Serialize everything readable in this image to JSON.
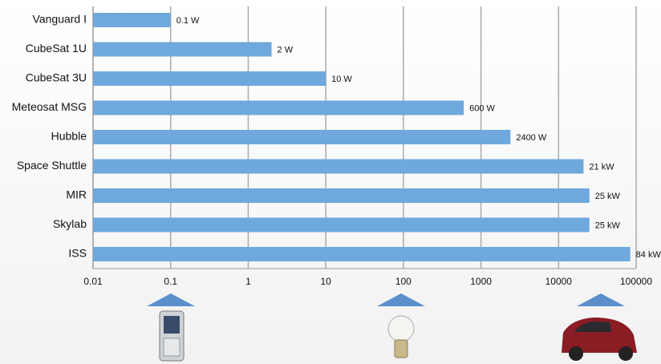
{
  "chart_data": {
    "type": "bar",
    "orientation": "horizontal",
    "categories": [
      "Vanguard I",
      "CubeSat 1U",
      "CubeSat 3U",
      "Meteosat MSG",
      "Hubble",
      "Space Shuttle",
      "MIR",
      "Skylab",
      "ISS"
    ],
    "values": [
      0.1,
      2,
      10,
      600,
      2400,
      21000,
      25000,
      25000,
      84000
    ],
    "value_labels": [
      "0.1 W",
      "2 W",
      "10 W",
      "600 W",
      "2400 W",
      "21 kW",
      "25 kW",
      "25 kW",
      "84 kW"
    ],
    "color": "#6fa8dc",
    "xscale": "log",
    "xlim": [
      0.01,
      100000
    ],
    "xticks": [
      0.01,
      0.1,
      1,
      10,
      100,
      1000,
      10000,
      100000
    ],
    "grid": true
  }
}
